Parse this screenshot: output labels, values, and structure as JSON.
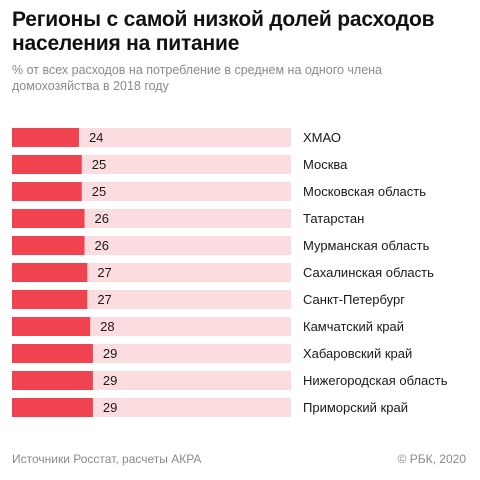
{
  "header": {
    "title_line1": "Регионы с самой низкой долей расходов",
    "title_line2": "населения на питание",
    "subtitle_line1": "% от всех расходов на потребление в среднем на одного члена",
    "subtitle_line2": "домохозяйства в 2018 году"
  },
  "footer": {
    "source": "Источники Росстат, расчеты АКРА",
    "credit": "© РБК, 2020"
  },
  "colors": {
    "bar": "#f0424f",
    "track": "#fcdddf",
    "text": "#1a1a1a"
  },
  "chart_data": {
    "type": "bar",
    "orientation": "horizontal",
    "categories": [
      "ХМАО",
      "Москва",
      "Московская область",
      "Татарстан",
      "Мурманская область",
      "Сахалинская область",
      "Санкт-Петербург",
      "Камчатский край",
      "Хабаровский край",
      "Нижегородская область",
      "Приморский край"
    ],
    "values": [
      24,
      25,
      25,
      26,
      26,
      27,
      27,
      28,
      29,
      29,
      29
    ],
    "title": "Регионы с самой низкой долей расходов населения на питание",
    "subtitle": "% от всех расходов на потребление в среднем на одного члена домохозяйства в 2018 году",
    "xlabel": "",
    "ylabel": "",
    "xlim": [
      0,
      100
    ],
    "grid": false,
    "legend": "none"
  }
}
